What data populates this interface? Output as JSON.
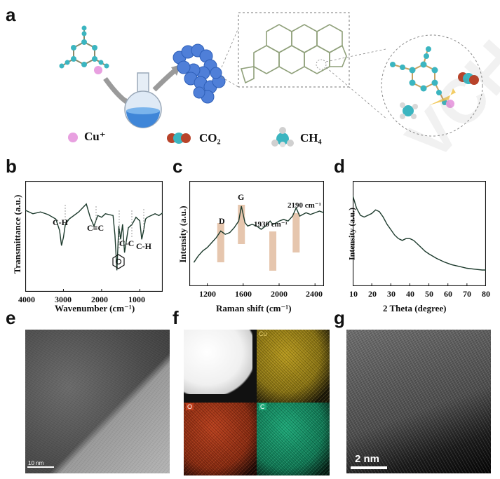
{
  "figure": {
    "panel_labels": [
      "a",
      "b",
      "c",
      "d",
      "e",
      "f",
      "g"
    ]
  },
  "panel_a": {
    "legend": [
      {
        "label": "Cu⁺",
        "icon": "copper-ion-sphere"
      },
      {
        "label": "CO₂",
        "icon": "co2-molecule"
      },
      {
        "label": "CH₄",
        "icon": "ch4-molecule"
      }
    ]
  },
  "panel_b": {
    "ylabel": "Transmittance (a.u.)",
    "xlabel": "Wavenumber (cm⁻¹)",
    "xticks": [
      "4000",
      "3000",
      "2000",
      "1000"
    ],
    "annotations": [
      "C-H",
      "C≡C",
      "C-C",
      "C-H"
    ],
    "chart_data": {
      "type": "line",
      "xlim": [
        4000,
        400
      ],
      "x_reversed": true,
      "x": [
        4000,
        3800,
        3600,
        3400,
        3200,
        3100,
        3050,
        3000,
        2950,
        2850,
        2600,
        2400,
        2300,
        2200,
        2100,
        2000,
        1900,
        1800,
        1700,
        1650,
        1600,
        1550,
        1500,
        1450,
        1400,
        1300,
        1200,
        1100,
        1000,
        950,
        900,
        850,
        800,
        700,
        600,
        500,
        400
      ],
      "y": [
        0.78,
        0.74,
        0.76,
        0.73,
        0.68,
        0.55,
        0.38,
        0.47,
        0.62,
        0.68,
        0.76,
        0.85,
        0.7,
        0.6,
        0.72,
        0.7,
        0.74,
        0.73,
        0.72,
        0.5,
        0.1,
        0.6,
        0.45,
        0.62,
        0.3,
        0.58,
        0.62,
        0.7,
        0.66,
        0.45,
        0.55,
        0.68,
        0.7,
        0.72,
        0.74,
        0.72,
        0.75
      ],
      "ylim": [
        0,
        1
      ]
    }
  },
  "panel_c": {
    "ylabel": "Intensity (a.u.)",
    "xlabel": "Raman shift (cm⁻¹)",
    "xticks": [
      "1200",
      "1600",
      "2000",
      "2400"
    ],
    "annotations": [
      "D",
      "G",
      "1930 cm⁻¹",
      "2190 cm⁻¹"
    ],
    "chart_data": {
      "type": "line",
      "xlim": [
        1000,
        2500
      ],
      "x": [
        1050,
        1100,
        1150,
        1200,
        1250,
        1300,
        1350,
        1400,
        1450,
        1500,
        1550,
        1580,
        1620,
        1650,
        1700,
        1750,
        1800,
        1850,
        1900,
        1930,
        1970,
        2000,
        2050,
        2100,
        2150,
        2190,
        2230,
        2300,
        2350,
        2400,
        2450,
        2500
      ],
      "y": [
        0.1,
        0.18,
        0.24,
        0.28,
        0.34,
        0.4,
        0.48,
        0.44,
        0.46,
        0.52,
        0.6,
        0.78,
        0.58,
        0.54,
        0.56,
        0.54,
        0.5,
        0.54,
        0.6,
        0.56,
        0.58,
        0.6,
        0.62,
        0.6,
        0.66,
        0.76,
        0.66,
        0.7,
        0.68,
        0.7,
        0.72,
        0.7
      ],
      "ylim": [
        0,
        1
      ],
      "highlight_bands": [
        1350,
        1580,
        1930,
        2190
      ]
    }
  },
  "panel_d": {
    "ylabel": "Intensity (a.u.)",
    "xlabel": "2 Theta (degree)",
    "xticks": [
      "10",
      "20",
      "30",
      "40",
      "50",
      "60",
      "70",
      "80"
    ],
    "chart_data": {
      "type": "line",
      "xlim": [
        10,
        80
      ],
      "x": [
        10,
        12,
        14,
        16,
        18,
        20,
        22,
        24,
        26,
        28,
        30,
        32,
        34,
        36,
        38,
        40,
        42,
        44,
        46,
        48,
        50,
        54,
        58,
        62,
        66,
        70,
        74,
        78,
        80
      ],
      "y": [
        0.9,
        0.76,
        0.68,
        0.66,
        0.68,
        0.7,
        0.74,
        0.72,
        0.66,
        0.58,
        0.52,
        0.46,
        0.42,
        0.4,
        0.42,
        0.42,
        0.4,
        0.36,
        0.32,
        0.28,
        0.25,
        0.2,
        0.16,
        0.13,
        0.11,
        0.09,
        0.08,
        0.07,
        0.07
      ],
      "ylim": [
        0,
        1
      ]
    }
  },
  "panel_e": {
    "scale_label": "10 nm"
  },
  "panel_f": {
    "maps": [
      "Cu",
      "O",
      "C"
    ]
  },
  "panel_g": {
    "scale_label": "2 nm"
  },
  "watermark": {
    "text": "VCH"
  },
  "colors": {
    "curve": "#1c3a2c",
    "band": "#e0b89a",
    "copper_ion": "#e8a0e0",
    "carbon": "#3bb5c0",
    "oxygen": "#b8432a",
    "blob": "#4f7fd8"
  }
}
